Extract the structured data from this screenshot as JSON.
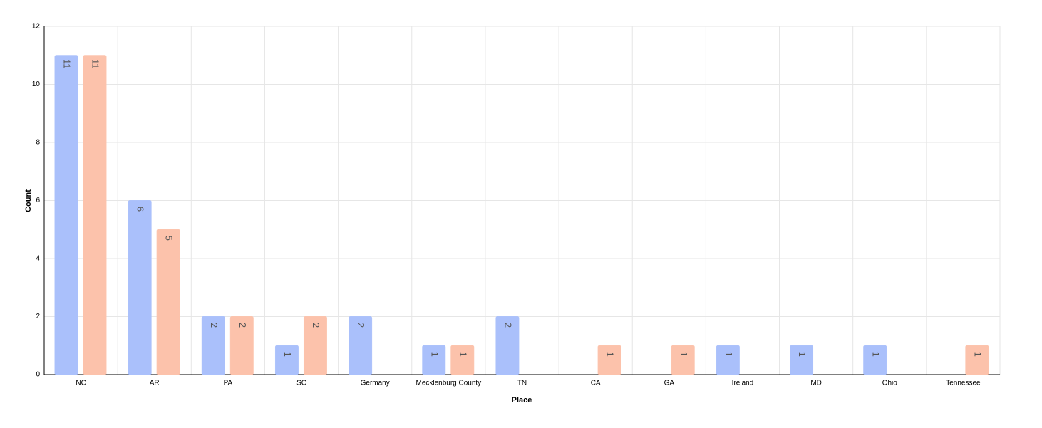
{
  "chart_data": {
    "type": "bar",
    "x_label": "Place",
    "y_label": "Count",
    "categories": [
      "NC",
      "AR",
      "PA",
      "SC",
      "Germany",
      "Mecklenburg County",
      "TN",
      "CA",
      "GA",
      "Ireland",
      "MD",
      "Ohio",
      "Tennessee"
    ],
    "series": [
      {
        "color": "#aac0fb",
        "values": [
          11,
          6,
          2,
          1,
          2,
          1,
          2,
          null,
          null,
          1,
          1,
          1,
          null
        ]
      },
      {
        "color": "#fcc2ab",
        "values": [
          11,
          5,
          2,
          2,
          null,
          1,
          null,
          1,
          1,
          null,
          null,
          null,
          1
        ]
      }
    ],
    "ylim": [
      0,
      12
    ],
    "yticks": [
      0,
      2,
      4,
      6,
      8,
      10,
      12
    ],
    "grid": true
  }
}
